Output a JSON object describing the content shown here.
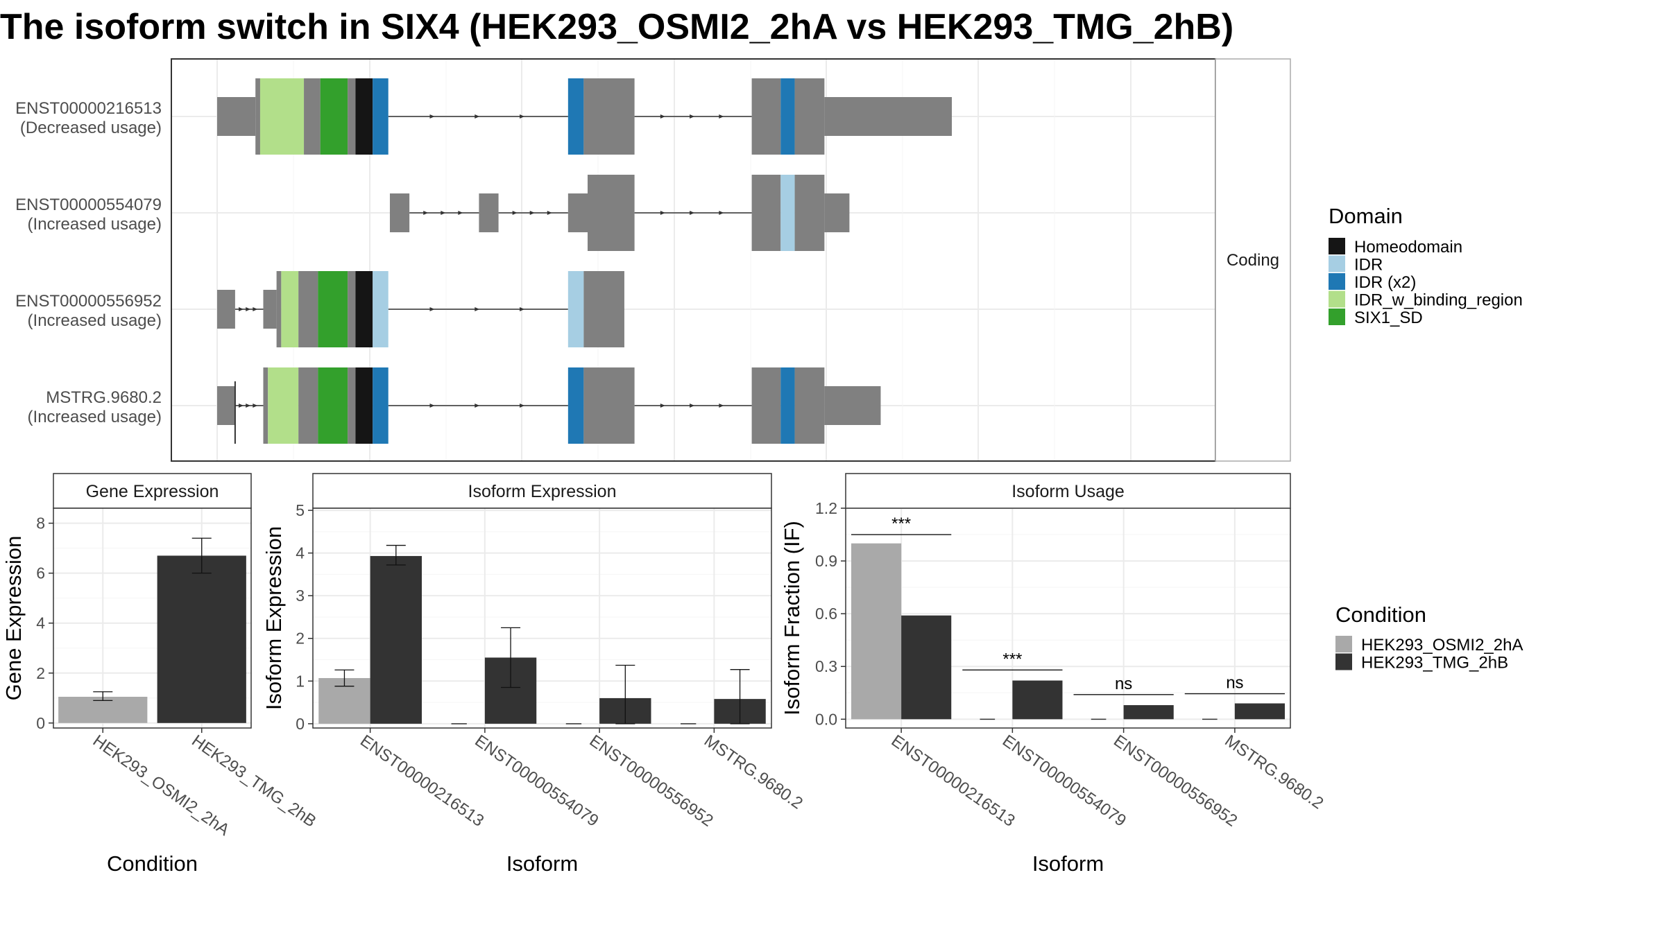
{
  "title": "The isoform switch in SIX4 (HEK293_OSMI2_2hA vs HEK293_TMG_2hB)",
  "colors": {
    "exon": "#808080",
    "Homeodomain": "#151515",
    "IDR": "#a6cee3",
    "IDR (x2)": "#1f78b4",
    "IDR_w_binding_region": "#b2df8a",
    "SIX1_SD": "#33a02c",
    "HEK293_OSMI2_2hA": "#a9a9a9",
    "HEK293_TMG_2hB": "#333333"
  },
  "chart_data": [
    {
      "type": "gene_structure",
      "strip_label": "Coding",
      "x_range": [
        0,
        1000
      ],
      "transcripts": [
        {
          "id": "ENST00000216513",
          "usage_label": "(Decreased usage)",
          "segments": [
            {
              "start": 6,
              "end": 55,
              "kind": "utr"
            },
            {
              "start": 55,
              "end": 61,
              "kind": "cds"
            },
            {
              "start": 61,
              "end": 117,
              "kind": "IDR_w_binding_region"
            },
            {
              "start": 117,
              "end": 138,
              "kind": "cds"
            },
            {
              "start": 138,
              "end": 173,
              "kind": "SIX1_SD"
            },
            {
              "start": 173,
              "end": 183,
              "kind": "cds"
            },
            {
              "start": 183,
              "end": 205,
              "kind": "Homeodomain"
            },
            {
              "start": 205,
              "end": 225,
              "kind": "IDR (x2)"
            },
            {
              "start": 455,
              "end": 475,
              "kind": "IDR (x2)"
            },
            {
              "start": 475,
              "end": 540,
              "kind": "cds"
            },
            {
              "start": 690,
              "end": 727,
              "kind": "cds"
            },
            {
              "start": 727,
              "end": 745,
              "kind": "IDR (x2)"
            },
            {
              "start": 745,
              "end": 783,
              "kind": "cds"
            },
            {
              "start": 783,
              "end": 946,
              "kind": "utr"
            }
          ]
        },
        {
          "id": "ENST00000554079",
          "usage_label": "(Increased usage)",
          "segments": [
            {
              "start": 227,
              "end": 252,
              "kind": "utr"
            },
            {
              "start": 341,
              "end": 366,
              "kind": "utr"
            },
            {
              "start": 455,
              "end": 480,
              "kind": "utr"
            },
            {
              "start": 480,
              "end": 540,
              "kind": "cds"
            },
            {
              "start": 690,
              "end": 727,
              "kind": "cds"
            },
            {
              "start": 727,
              "end": 745,
              "kind": "IDR"
            },
            {
              "start": 745,
              "end": 783,
              "kind": "cds"
            },
            {
              "start": 783,
              "end": 815,
              "kind": "utr"
            }
          ]
        },
        {
          "id": "ENST00000556952",
          "usage_label": "(Increased usage)",
          "segments": [
            {
              "start": 6,
              "end": 29,
              "kind": "utr"
            },
            {
              "start": 65,
              "end": 82,
              "kind": "utr"
            },
            {
              "start": 82,
              "end": 88,
              "kind": "cds"
            },
            {
              "start": 88,
              "end": 110,
              "kind": "IDR_w_binding_region"
            },
            {
              "start": 110,
              "end": 135,
              "kind": "cds"
            },
            {
              "start": 135,
              "end": 173,
              "kind": "SIX1_SD"
            },
            {
              "start": 173,
              "end": 183,
              "kind": "cds"
            },
            {
              "start": 183,
              "end": 205,
              "kind": "Homeodomain"
            },
            {
              "start": 205,
              "end": 225,
              "kind": "IDR"
            },
            {
              "start": 455,
              "end": 475,
              "kind": "IDR"
            },
            {
              "start": 475,
              "end": 527,
              "kind": "cds"
            }
          ]
        },
        {
          "id": "MSTRG.9680.2",
          "usage_label": "(Increased usage)",
          "segments": [
            {
              "start": 6,
              "end": 29,
              "kind": "utr"
            },
            {
              "start": 29,
              "end": 30,
              "kind": "line"
            },
            {
              "start": 65,
              "end": 71,
              "kind": "cds"
            },
            {
              "start": 71,
              "end": 110,
              "kind": "IDR_w_binding_region"
            },
            {
              "start": 110,
              "end": 135,
              "kind": "cds"
            },
            {
              "start": 135,
              "end": 173,
              "kind": "SIX1_SD"
            },
            {
              "start": 173,
              "end": 183,
              "kind": "cds"
            },
            {
              "start": 183,
              "end": 205,
              "kind": "Homeodomain"
            },
            {
              "start": 205,
              "end": 225,
              "kind": "IDR (x2)"
            },
            {
              "start": 455,
              "end": 475,
              "kind": "IDR (x2)"
            },
            {
              "start": 475,
              "end": 540,
              "kind": "cds"
            },
            {
              "start": 690,
              "end": 727,
              "kind": "cds"
            },
            {
              "start": 727,
              "end": 745,
              "kind": "IDR (x2)"
            },
            {
              "start": 745,
              "end": 783,
              "kind": "cds"
            },
            {
              "start": 783,
              "end": 855,
              "kind": "utr"
            }
          ]
        }
      ],
      "domain_legend": {
        "title": "Domain",
        "entries": [
          "Homeodomain",
          "IDR",
          "IDR (x2)",
          "IDR_w_binding_region",
          "SIX1_SD"
        ]
      }
    },
    {
      "type": "bar",
      "panel_title": "Gene Expression",
      "xlabel": "Condition",
      "ylabel": "Gene Expression",
      "categories": [
        "HEK293_OSMI2_2hA",
        "HEK293_TMG_2hB"
      ],
      "values": [
        1.05,
        6.7
      ],
      "errors": [
        [
          0.9,
          1.25
        ],
        [
          6.0,
          7.4
        ]
      ],
      "ylim": [
        -0.2,
        8.6
      ],
      "yticks": [
        "0",
        "2",
        "4",
        "6",
        "8"
      ]
    },
    {
      "type": "bar",
      "panel_title": "Isoform Expression",
      "xlabel": "Isoform",
      "ylabel": "Isoform Expression",
      "categories": [
        "ENST00000216513",
        "ENST00000554079",
        "ENST00000556952",
        "MSTRG.9680.2"
      ],
      "series": [
        {
          "name": "HEK293_OSMI2_2hA",
          "values": [
            1.07,
            0,
            0,
            0
          ],
          "errors": [
            [
              0.88,
              1.26
            ],
            null,
            null,
            null
          ]
        },
        {
          "name": "HEK293_TMG_2hB",
          "values": [
            3.93,
            1.55,
            0.6,
            0.58
          ],
          "errors": [
            [
              3.72,
              4.18
            ],
            [
              0.85,
              2.25
            ],
            [
              0,
              1.37
            ],
            [
              0,
              1.27
            ]
          ]
        }
      ],
      "ylim": [
        -0.1,
        5.05
      ],
      "yticks": [
        "0",
        "1",
        "2",
        "3",
        "4",
        "5"
      ]
    },
    {
      "type": "bar",
      "panel_title": "Isoform Usage",
      "xlabel": "Isoform",
      "ylabel": "Isoform Fraction (IF)",
      "categories": [
        "ENST00000216513",
        "ENST00000554079",
        "ENST00000556952",
        "MSTRG.9680.2"
      ],
      "series": [
        {
          "name": "HEK293_OSMI2_2hA",
          "values": [
            1.0,
            0,
            0,
            0
          ]
        },
        {
          "name": "HEK293_TMG_2hB",
          "values": [
            0.59,
            0.22,
            0.08,
            0.09
          ]
        }
      ],
      "significance": [
        {
          "label": "***",
          "y": 1.05
        },
        {
          "label": "***",
          "y": 0.28
        },
        {
          "label": "ns",
          "y": 0.14
        },
        {
          "label": "ns",
          "y": 0.145
        }
      ],
      "ylim": [
        -0.05,
        1.2
      ],
      "yticks": [
        "0.0",
        "0.3",
        "0.6",
        "0.9",
        "1.2"
      ]
    }
  ],
  "condition_legend": {
    "title": "Condition",
    "entries": [
      "HEK293_OSMI2_2hA",
      "HEK293_TMG_2hB"
    ]
  }
}
